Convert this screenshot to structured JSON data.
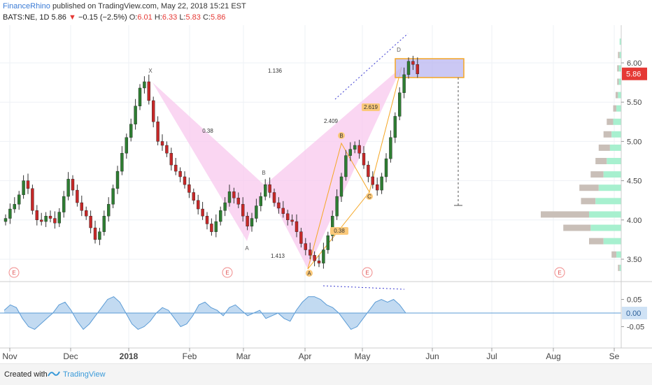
{
  "header": {
    "author": "FinanceRhino",
    "published": "published on TradingView.com, May 22, 2018 15:21 EST",
    "symbol": "BATS:NE, 1D",
    "last": "5.86",
    "arrow": "▼",
    "change": "−0.15 (−2.5%)",
    "o_label": "O:",
    "o_val": "6.01",
    "h_label": "H:",
    "h_val": "6.33",
    "l_label": "L:",
    "l_val": "5.83",
    "c_label": "C:",
    "c_val": "5.86"
  },
  "footer": {
    "created": "Created with",
    "brand": "TradingView"
  },
  "colors": {
    "up": "#2e7d32",
    "down": "#c62828",
    "pattern_fill": "#f8c8ee",
    "orange": "#f5a623",
    "osc_fill": "#b7d3ef",
    "osc_line": "#5b9bd5",
    "price_badge": "#e53935"
  },
  "chart_data": {
    "type": "line",
    "series": [
      {
        "values": [
          4.02,
          4.14,
          4.2,
          4.32,
          4.5,
          4.4,
          4.12,
          4.0,
          3.98,
          4.05,
          4.02,
          3.96,
          4.1,
          4.3,
          4.52,
          4.38,
          4.22,
          4.12,
          4.05,
          3.9,
          3.75,
          3.85,
          4.05,
          4.2,
          4.4,
          4.62,
          4.85,
          5.05,
          5.22,
          5.45,
          5.68,
          5.76,
          5.52,
          5.25,
          5.0,
          4.95,
          4.85,
          4.7,
          4.62,
          4.55,
          4.45,
          4.35,
          4.25,
          4.14,
          4.05,
          3.95,
          3.85,
          3.98,
          4.12,
          4.22,
          4.36,
          4.28,
          4.2,
          4.05,
          3.92,
          4.02,
          4.18,
          4.3,
          4.45,
          4.35,
          4.22,
          4.15,
          4.08,
          4.0,
          3.98,
          3.85,
          3.7,
          3.62,
          3.55,
          3.48,
          3.45,
          3.62,
          3.8,
          4.05,
          4.3,
          4.55,
          4.82,
          4.9,
          4.95,
          4.85,
          4.7,
          4.55,
          4.45,
          4.38,
          4.55,
          4.78,
          5.05,
          5.32,
          5.62,
          5.85,
          6.02,
          5.98,
          5.86
        ]
      }
    ],
    "x_ticks": [
      "Nov",
      "Dec",
      "2018",
      "Feb",
      "Mar",
      "Apr",
      "May",
      "Jun",
      "Jul",
      "Aug",
      "Se"
    ],
    "y_ticks": [
      "6.00",
      "5.50",
      "5.00",
      "4.50",
      "4.00",
      "3.50"
    ],
    "ylim": [
      3.35,
      6.45
    ],
    "current_price": "5.86",
    "pattern_points": [
      {
        "label": "X",
        "value": 5.78
      },
      {
        "label": "A",
        "value": 3.72
      },
      {
        "label": "B",
        "value": 4.6
      },
      {
        "label": "A",
        "value": 3.4
      },
      {
        "label": "B",
        "value": 5.0
      },
      {
        "label": "C",
        "value": 4.32
      },
      {
        "label": "D",
        "value": 6.05
      }
    ],
    "ratios": [
      "1.136",
      "0.38",
      "1.413",
      "2.409",
      "2.619",
      "0.38"
    ],
    "event_markers": [
      "E",
      "E",
      "E",
      "E"
    ],
    "oscillator": {
      "y_ticks": [
        "0.05",
        "-0.05"
      ],
      "current_value": "0.00",
      "values": [
        0.01,
        0.03,
        0.02,
        -0.02,
        -0.05,
        -0.06,
        -0.04,
        -0.02,
        0.0,
        0.03,
        0.04,
        0.01,
        -0.03,
        -0.06,
        -0.04,
        -0.01,
        0.02,
        0.05,
        0.06,
        0.04,
        0.0,
        -0.04,
        -0.06,
        -0.05,
        -0.03,
        0.0,
        0.02,
        0.01,
        -0.02,
        -0.05,
        -0.04,
        -0.01,
        0.03,
        0.04,
        0.02,
        0.01,
        -0.01,
        0.02,
        0.03,
        0.01,
        -0.01,
        0.0,
        0.01,
        -0.02,
        -0.01,
        0.0,
        -0.02,
        -0.03,
        0.01,
        0.04,
        0.06,
        0.06,
        0.05,
        0.03,
        0.02,
        0.0,
        -0.03,
        -0.06,
        -0.05,
        -0.02,
        0.01,
        0.04,
        0.05,
        0.04,
        0.05,
        0.03,
        0.0
      ]
    },
    "volume_profile": [
      {
        "price": 6.27,
        "total": 0.02,
        "up": 0.02
      },
      {
        "price": 6.1,
        "total": 0.04,
        "up": 0.02
      },
      {
        "price": 5.93,
        "total": 0.05,
        "up": 0.03
      },
      {
        "price": 5.76,
        "total": 0.05,
        "up": 0.03
      },
      {
        "price": 5.59,
        "total": 0.07,
        "up": 0.04
      },
      {
        "price": 5.42,
        "total": 0.1,
        "up": 0.06
      },
      {
        "price": 5.25,
        "total": 0.18,
        "up": 0.1
      },
      {
        "price": 5.09,
        "total": 0.22,
        "up": 0.12
      },
      {
        "price": 4.92,
        "total": 0.28,
        "up": 0.14
      },
      {
        "price": 4.75,
        "total": 0.32,
        "up": 0.18
      },
      {
        "price": 4.58,
        "total": 0.38,
        "up": 0.22
      },
      {
        "price": 4.41,
        "total": 0.52,
        "up": 0.28
      },
      {
        "price": 4.24,
        "total": 0.5,
        "up": 0.32
      },
      {
        "price": 4.07,
        "total": 1.0,
        "up": 0.4
      },
      {
        "price": 3.9,
        "total": 0.72,
        "up": 0.38
      },
      {
        "price": 3.73,
        "total": 0.4,
        "up": 0.22
      },
      {
        "price": 3.56,
        "total": 0.12,
        "up": 0.06
      },
      {
        "price": 3.39,
        "total": 0.04,
        "up": 0.02
      }
    ]
  }
}
